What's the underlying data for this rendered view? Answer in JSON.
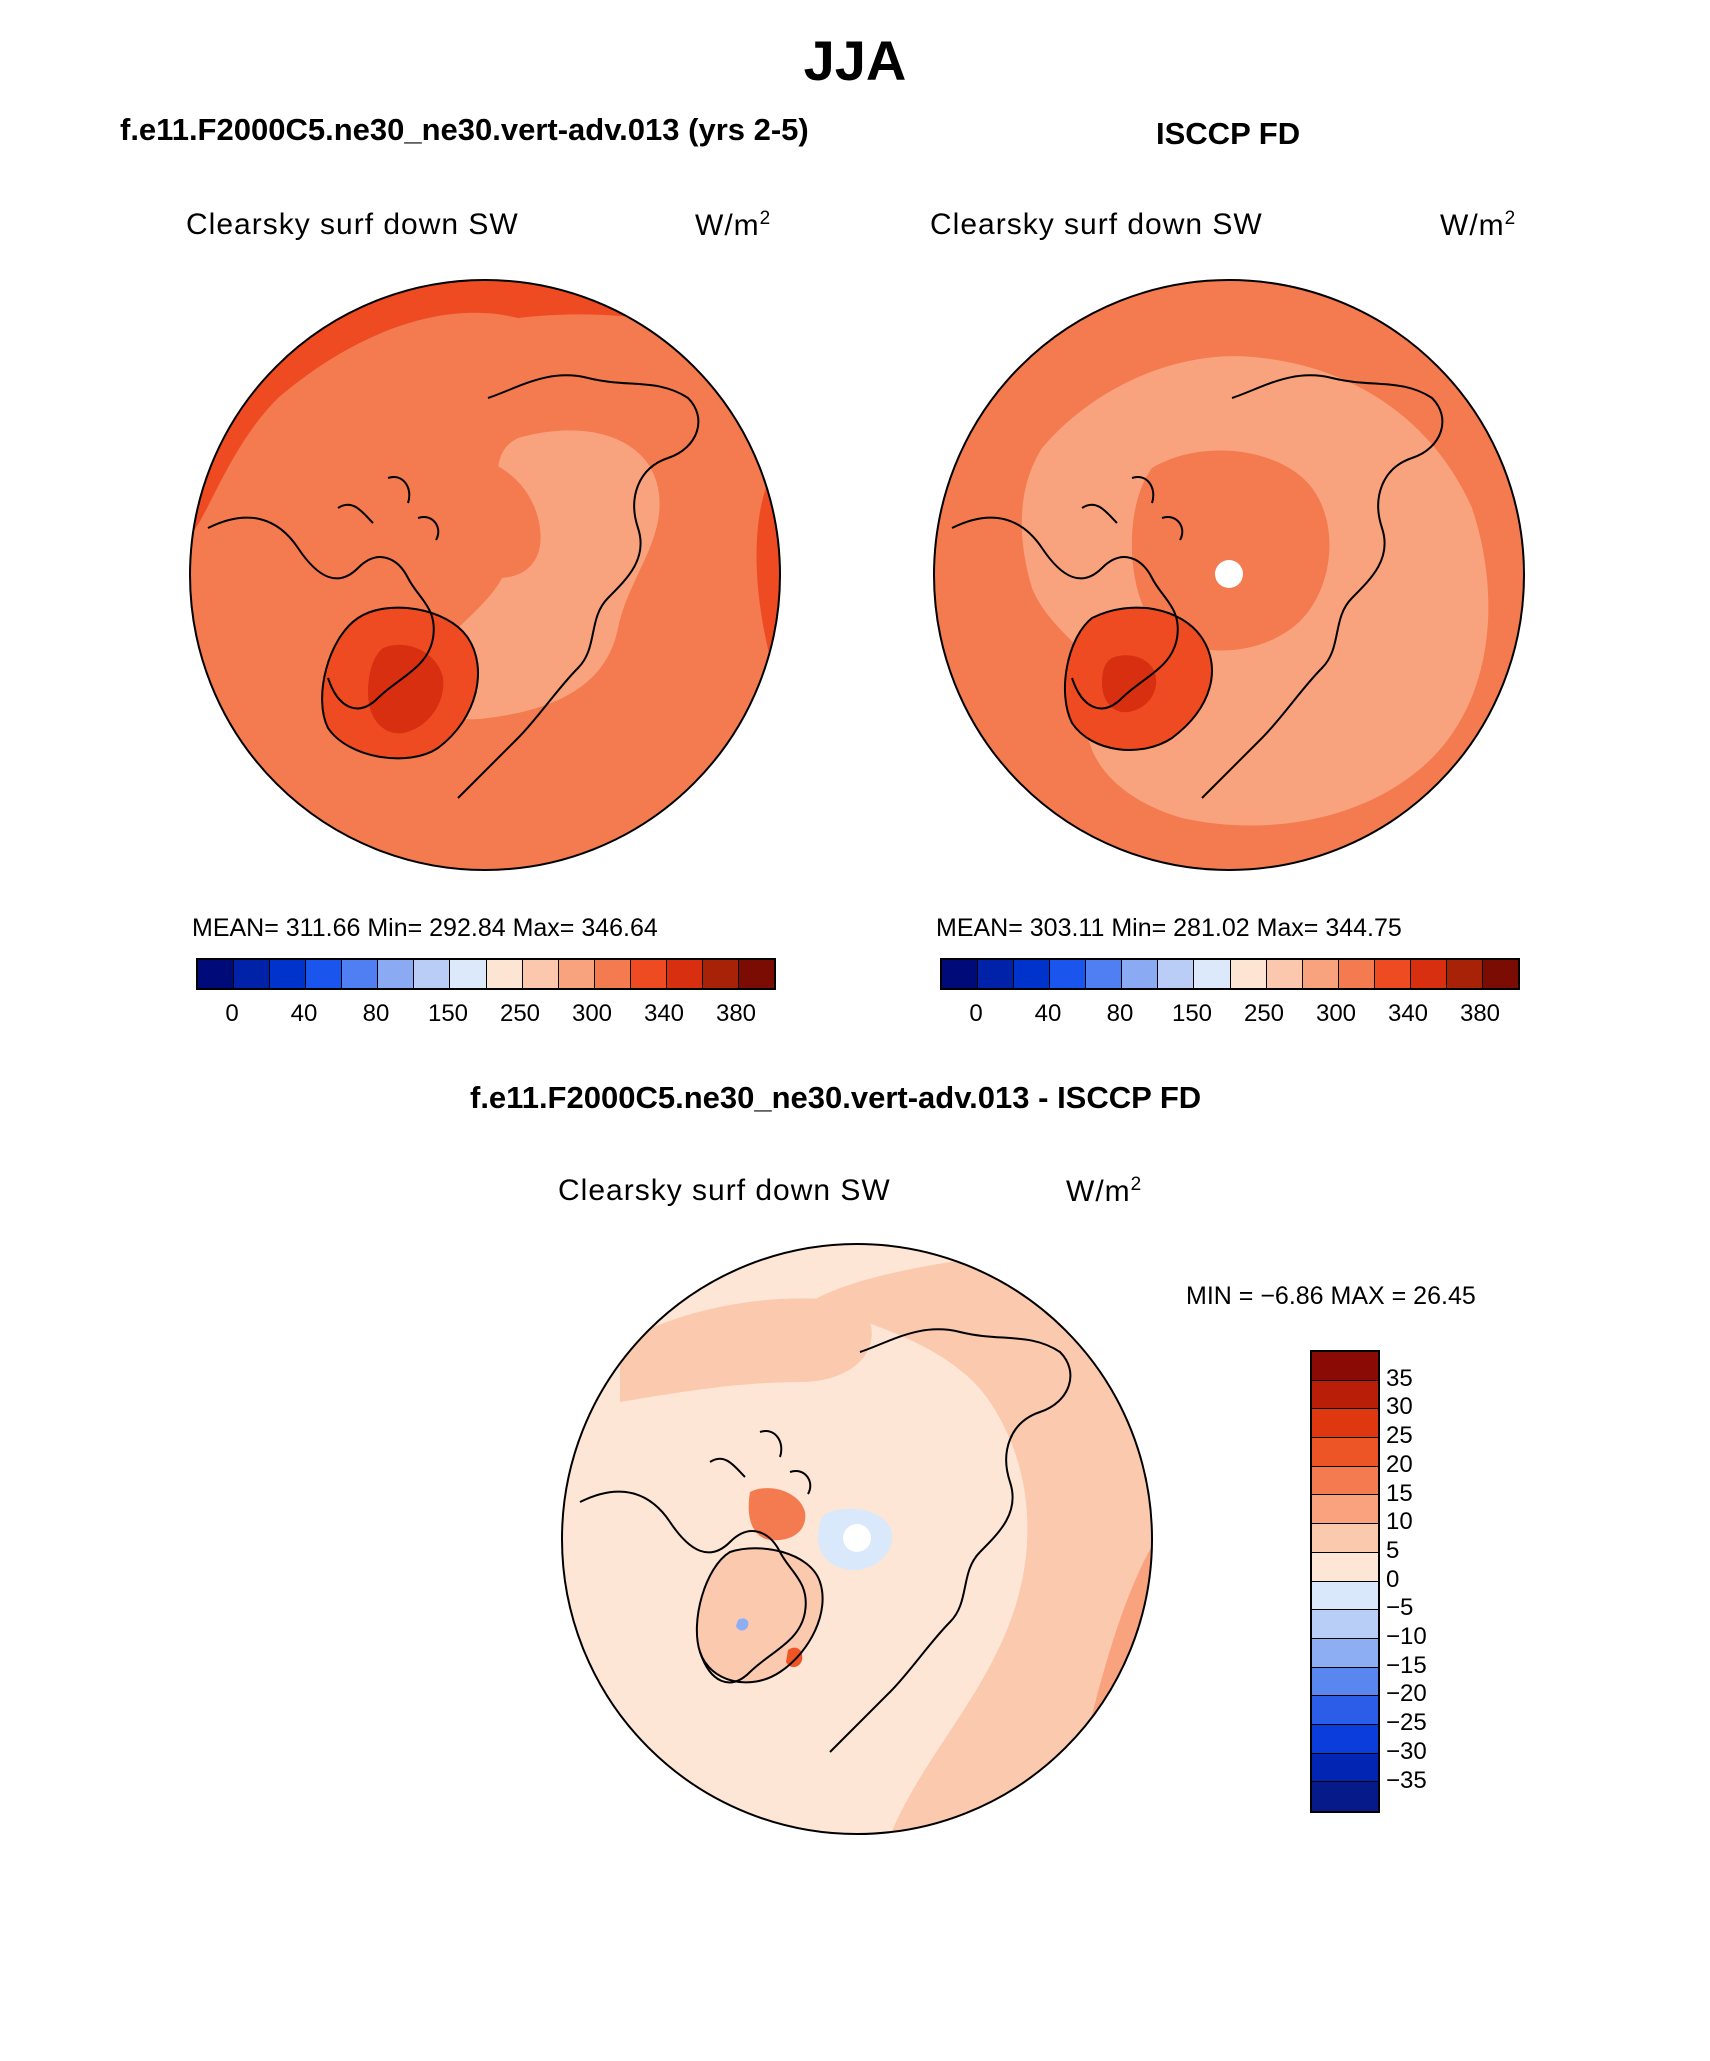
{
  "title": "JJA",
  "panels": [
    {
      "id": "model",
      "header": "f.e11.F2000C5.ne30_ne30.vert-adv.013 (yrs 2-5)",
      "field": "Clearsky surf down SW",
      "units": "W/m",
      "units_sup": "2",
      "stats": {
        "mean": "311.66",
        "min": "292.84",
        "max": "346.64"
      },
      "stats_text": "MEAN= 311.66   Min= 292.84   Max= 346.64",
      "background_level": "340",
      "has_pole_hole": false
    },
    {
      "id": "obs",
      "header": "ISCCP FD",
      "field": "Clearsky surf down SW",
      "units": "W/m",
      "units_sup": "2",
      "stats": {
        "mean": "303.11",
        "min": "281.02",
        "max": "344.75"
      },
      "stats_text": "MEAN= 303.11   Min= 281.02   Max= 344.75",
      "background_level": "340",
      "has_pole_hole": true
    }
  ],
  "abs_colorbar": {
    "colors": [
      "#000b7a",
      "#0022a8",
      "#0033cc",
      "#1a55ee",
      "#4f7ff2",
      "#8aaaf4",
      "#b9cdf7",
      "#dce9fb",
      "#fde5d3",
      "#fbc8ad",
      "#f9a37e",
      "#f47a4f",
      "#ee4b22",
      "#d72f10",
      "#a82208",
      "#7a0c04"
    ],
    "tick_labels": [
      "0",
      "40",
      "80",
      "150",
      "250",
      "300",
      "340",
      "380"
    ]
  },
  "diff_panel": {
    "header": "f.e11.F2000C5.ne30_ne30.vert-adv.013 - ISCCP FD",
    "field": "Clearsky surf down SW",
    "units": "W/m",
    "units_sup": "2",
    "min_label": "MIN =",
    "min_value": "−6.86",
    "max_label": "MAX =",
    "max_value": "26.45",
    "minmax_text": "MIN =   −6.86  MAX =    26.45"
  },
  "diff_colorbar": {
    "colors_top_to_bottom": [
      "#8a0a05",
      "#b91f08",
      "#df3710",
      "#ee5526",
      "#f47a4f",
      "#f9a37e",
      "#fbc9ae",
      "#fde6d5",
      "#dae8fb",
      "#b9cef7",
      "#8eaef4",
      "#5a86f0",
      "#2b5de8",
      "#0a3ddb",
      "#0225b3",
      "#061a8a"
    ],
    "tick_labels_top_to_bottom": [
      "35",
      "30",
      "25",
      "20",
      "15",
      "10",
      "5",
      "0",
      "−5",
      "−10",
      "−15",
      "−20",
      "−25",
      "−30",
      "−35"
    ]
  },
  "palette": {
    "outline": "#000000",
    "ocean_high": "#ee4b22",
    "ocean_mid": "#f47a4f",
    "land_light": "#f9a37e",
    "diff_low": "#fde6d5",
    "diff_mid": "#fbc9ae",
    "pole": "#ffffff"
  }
}
